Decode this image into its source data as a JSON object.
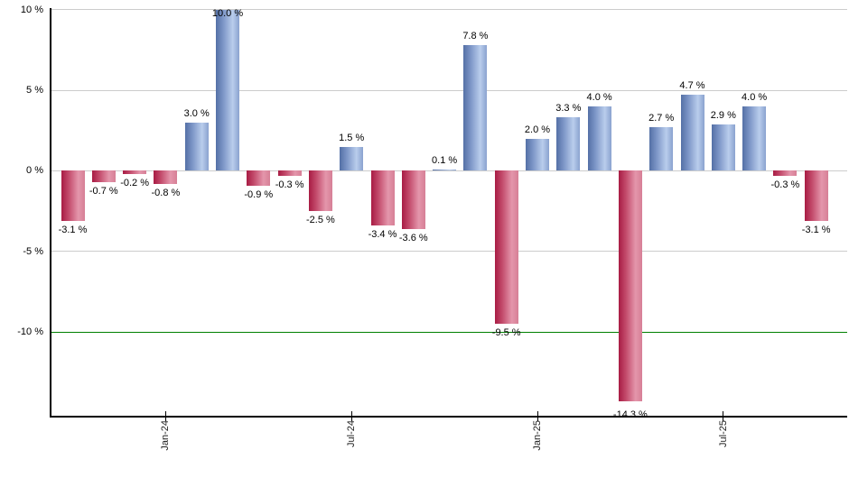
{
  "chart_data": {
    "type": "bar",
    "title": "",
    "ylabel": "",
    "xlabel": "",
    "unit": "%",
    "values": [
      -3.1,
      -0.7,
      -0.2,
      -0.8,
      3.0,
      10.0,
      -0.9,
      -0.3,
      -2.5,
      1.5,
      -3.4,
      -3.6,
      0.1,
      7.8,
      -9.5,
      2.0,
      3.3,
      4.0,
      -14.3,
      2.7,
      4.7,
      2.9,
      4.0,
      -0.3,
      -3.1
    ],
    "bar_labels": [
      "-3.1 %",
      "-0.7 %",
      "-0.2 %",
      "-0.8 %",
      "3.0 %",
      "10.0 %",
      "-0.9 %",
      "-0.3 %",
      "-2.5 %",
      "1.5 %",
      "-3.4 %",
      "-3.6 %",
      "0.1 %",
      "7.8 %",
      "-9.5 %",
      "2.0 %",
      "3.3 %",
      "4.0 %",
      "-14.3 %",
      "2.7 %",
      "4.7 %",
      "2.9 %",
      "4.0 %",
      "-0.3 %",
      "-3.1 %"
    ],
    "x_tick_labels": [
      "Jan-24",
      "Jul-24",
      "Jan-25",
      "Jul-25"
    ],
    "x_tick_bar_indices": [
      3,
      9,
      15,
      21
    ],
    "y_ticks": [
      10,
      5,
      0,
      -5,
      -10
    ],
    "y_tick_labels": [
      "10 %",
      "5 %",
      "0 %",
      "-5 %",
      "-10 %"
    ],
    "ylim": [
      -15.2,
      10.1
    ],
    "grid": true,
    "legend": false,
    "reference_line": {
      "y": -10,
      "color": "#008000"
    },
    "colors": {
      "positive_bar": {
        "edge": "#5470a6",
        "mid": "#7b94c6",
        "light": "#b9cdec",
        "right": "#8aa2cf"
      },
      "negative_bar": {
        "edge": "#a81c44",
        "mid": "#c2496a",
        "light": "#e496ab",
        "right": "#d67f96"
      },
      "grid": "#cccccc",
      "axis": "#000000",
      "reference": "#008000",
      "background": "#ffffff",
      "label_text": "#000000"
    }
  }
}
